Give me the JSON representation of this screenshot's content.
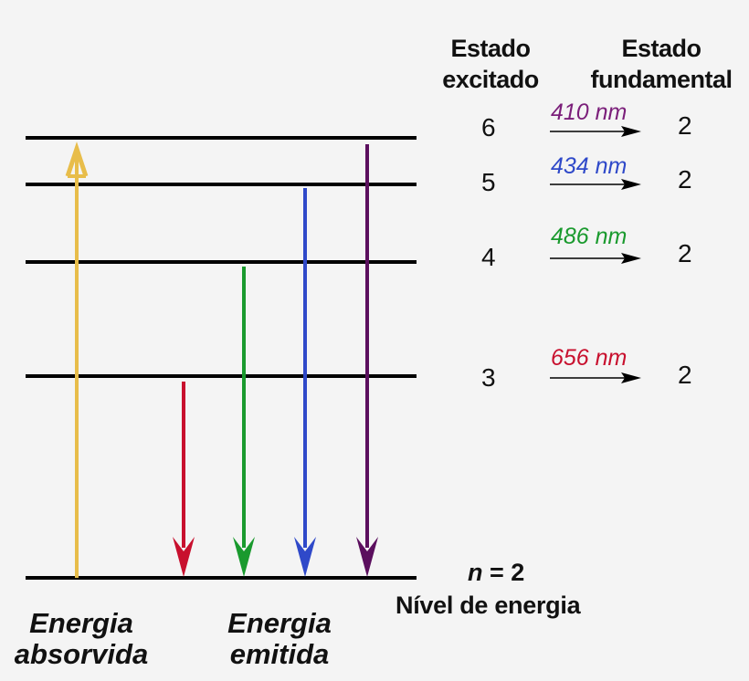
{
  "headers": {
    "excited_line1": "Estado",
    "excited_line2": "excitado",
    "ground_line1": "Estado",
    "ground_line2": "fundamental"
  },
  "transitions": [
    {
      "from": "6",
      "wavelength": "410 nm",
      "to": "2",
      "color": "#7b1f7a"
    },
    {
      "from": "5",
      "wavelength": "434 nm",
      "to": "2",
      "color": "#2f49c9"
    },
    {
      "from": "4",
      "wavelength": "486 nm",
      "to": "2",
      "color": "#1a9a2e"
    },
    {
      "from": "3",
      "wavelength": "656 nm",
      "to": "2",
      "color": "#c8102e"
    }
  ],
  "ground_level": {
    "label_n": "n",
    "label_eq": "= 2",
    "caption": "Nível de energia"
  },
  "bottom_labels": {
    "absorbed_line1": "Energia",
    "absorbed_line2": "absorvida",
    "emitted_line1": "Energia",
    "emitted_line2": "emitida"
  },
  "colors": {
    "absorption_arrow": "#e8bd4a",
    "level_lines": "#000000",
    "emission_red": "#c8102e",
    "emission_green": "#1a9a2e",
    "emission_blue": "#2f49c9",
    "emission_violet": "#5b0f5e"
  }
}
